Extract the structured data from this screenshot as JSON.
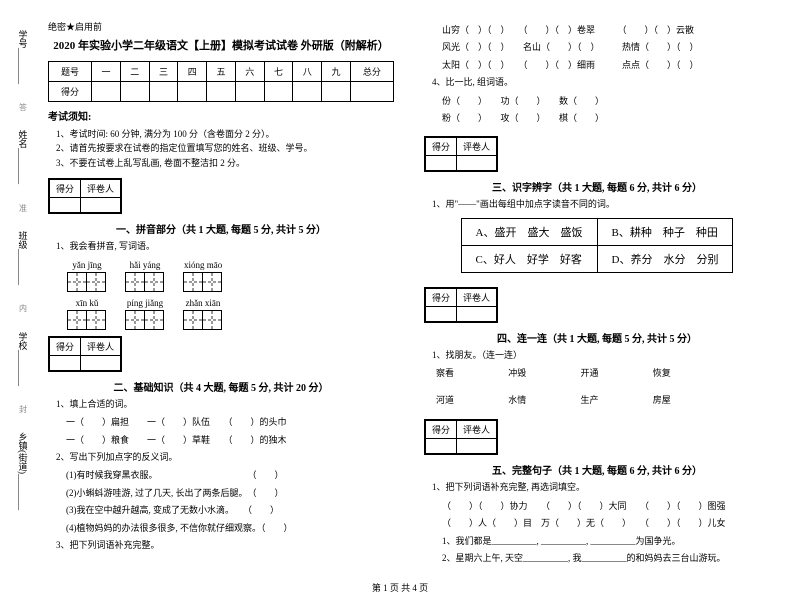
{
  "sidebar": {
    "items": [
      "学号________",
      "姓名________",
      "班级________",
      "学校________",
      "乡镇(街道)________"
    ],
    "marks": [
      "答",
      "题",
      "准",
      "不",
      "内",
      "线",
      "封",
      "密"
    ]
  },
  "header": "绝密★启用前",
  "title": "2020 年实验小学二年级语文【上册】模拟考试试卷 外研版（附解析）",
  "scoreTable": {
    "row1": [
      "题号",
      "一",
      "二",
      "三",
      "四",
      "五",
      "六",
      "七",
      "八",
      "九",
      "总分"
    ],
    "row2": [
      "得分",
      "",
      "",
      "",
      "",
      "",
      "",
      "",
      "",
      "",
      ""
    ]
  },
  "noticeHead": "考试须知:",
  "notices": [
    "1、考试时间: 60 分钟, 满分为 100 分（含卷面分 2 分）。",
    "2、请首先按要求在试卷的指定位置填写您的姓名、班级、学号。",
    "3、不要在试卷上乱写乱画, 卷面不整洁扣 2 分。"
  ],
  "scoreBox": {
    "c1": "得分",
    "c2": "评卷人"
  },
  "sec1": {
    "title": "一、拼音部分（共 1 大题, 每题 5 分, 共计 5 分）",
    "q": "1、我会看拼音, 写词语。"
  },
  "pinyinRows": [
    [
      {
        "p": "yǎn  jīng",
        "n": 2
      },
      {
        "p": "hǎi  yáng",
        "n": 2
      },
      {
        "p": "xióng  māo",
        "n": 2
      }
    ],
    [
      {
        "p": "xīn  kǔ",
        "n": 2
      },
      {
        "p": "píng  jiǎng",
        "n": 2
      },
      {
        "p": "zhǎn  xiān",
        "n": 2
      }
    ]
  ],
  "sec2": {
    "title": "二、基础知识（共 4 大题, 每题 5 分, 共计 20 分）",
    "q1": "1、填上合适的词。",
    "q1Lines": [
      "一（　　）扁担　　一（　　）队伍　　（　　）的头巾",
      "一（　　）粮食　　一（　　）草鞋　　（　　）的独木"
    ],
    "q2": "2、写出下列加点字的反义词。",
    "q2Lines": [
      "(1)有时候我穿黑衣服。　　　　　　　　　　　（　　）",
      "(2)小蝌蚪游哇游, 过了几天, 长出了两条后腿。　（　　）",
      "(3)我在空中越升越高, 变成了无数小水滴。　　（　　）",
      "(4)植物妈妈的办法很多很多, 不信你就仔细观察。（　　）"
    ],
    "q3": "3、把下列词语补充完整。"
  },
  "rightTop": {
    "lines": [
      "山穷（　）（　）　　（　　）（　）卷翠　　　（　　）（　）云散",
      "风光（　）（　）　　名山（　　）（　）　　　热情（　　）（　）",
      "太阳（　）（　）　　（　　）（　）细雨　　　点点（　　）（　）"
    ],
    "q4": "4、比一比, 组词语。",
    "q4Lines": [
      "份（　　）　　功（　　）　　数（　　）",
      "粉（　　）　　攻（　　）　　棋（　　）"
    ]
  },
  "sec3": {
    "title": "三、识字辨字（共 1 大题, 每题 6 分, 共计 6 分）",
    "q": "1、用\"——\"画出每组中加点字读音不同的词。",
    "table": [
      [
        "A、盛开　盛大　盛饭",
        "B、耕种　种子　种田"
      ],
      [
        "C、好人　好学　好客",
        "D、养分　水分　分别"
      ]
    ]
  },
  "sec4": {
    "title": "四、连一连（共 1 大题, 每题 5 分, 共计 5 分）",
    "q": "1、找朋友。（连一连）",
    "row1": [
      "察看",
      "冲毁",
      "开通",
      "恢复"
    ],
    "row2": [
      "河道",
      "水情",
      "生产",
      "房屋"
    ]
  },
  "sec5": {
    "title": "五、完整句子（共 1 大题, 每题 6 分, 共计 6 分）",
    "q": "1、把下列词语补充完整, 再选词填空。",
    "lines": [
      "（　　）（　　）协力　　（　　）（　　）大同　　（　　）（　　）图强",
      "（　　）人（　　）目　万（　　）无（　　）　　（　　）（　　）儿女"
    ],
    "s1Label": "1、我们都是__________, __________, __________为国争光。",
    "s2Label": "2、星期六上午, 天空__________, 我__________的和妈妈去三台山游玩。"
  },
  "footer": "第 1 页  共 4 页"
}
